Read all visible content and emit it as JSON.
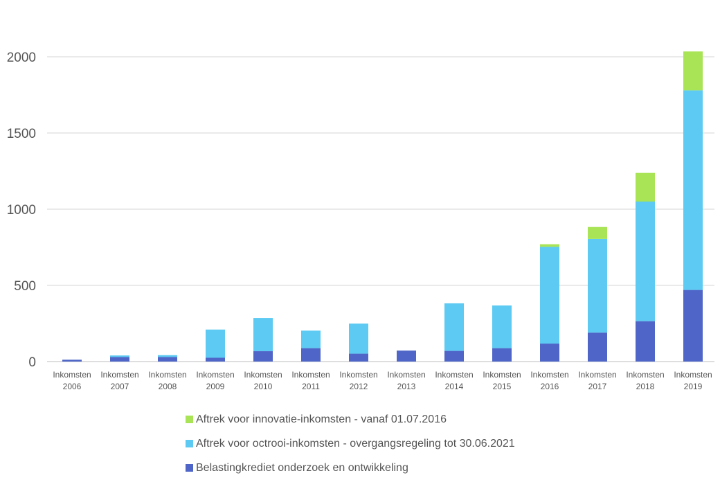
{
  "chart_data": {
    "type": "bar",
    "stacked": true,
    "title": "",
    "xlabel": "",
    "ylabel": "",
    "ylim": [
      0,
      2000
    ],
    "yticks": [
      0,
      500,
      1000,
      1500,
      2000
    ],
    "grid": true,
    "legend_position": "bottom",
    "categories": [
      [
        "Inkomsten",
        "2006"
      ],
      [
        "Inkomsten",
        "2007"
      ],
      [
        "Inkomsten",
        "2008"
      ],
      [
        "Inkomsten",
        "2009"
      ],
      [
        "Inkomsten",
        "2010"
      ],
      [
        "Inkomsten",
        "2011"
      ],
      [
        "Inkomsten",
        "2012"
      ],
      [
        "Inkomsten",
        "2013"
      ],
      [
        "Inkomsten",
        "2014"
      ],
      [
        "Inkomsten",
        "2015"
      ],
      [
        "Inkomsten",
        "2016"
      ],
      [
        "Inkomsten",
        "2017"
      ],
      [
        "Inkomsten",
        "2018"
      ],
      [
        "Inkomsten",
        "2019"
      ]
    ],
    "series": [
      {
        "name": "Belastingkrediet onderzoek en ontwikkeling",
        "color": "#4f66c8",
        "values": [
          12,
          30,
          30,
          25,
          68,
          88,
          52,
          72,
          70,
          88,
          118,
          190,
          265,
          470
        ]
      },
      {
        "name": "Aftrek voor octrooi-inkomsten - overgangsregeling tot 30.06.2021",
        "color": "#5ccaf2",
        "values": [
          0,
          10,
          12,
          185,
          218,
          115,
          197,
          0,
          312,
          280,
          635,
          615,
          785,
          1310
        ]
      },
      {
        "name": "Aftrek voor innovatie-inkomsten - vanaf 01.07.2016",
        "color": "#a8e455",
        "values": [
          0,
          0,
          0,
          0,
          0,
          0,
          0,
          0,
          0,
          0,
          17,
          78,
          188,
          255
        ]
      }
    ],
    "legend_order": [
      2,
      1,
      0
    ]
  }
}
